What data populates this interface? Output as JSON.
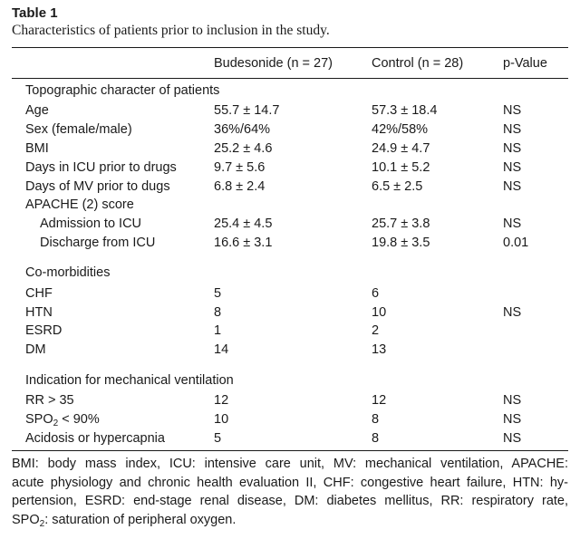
{
  "table_label": "Table 1",
  "caption": "Characteristics of patients prior to inclusion in the study.",
  "headers": {
    "col0": "",
    "col1": "Budesonide (n = 27)",
    "col2": "Control (n = 28)",
    "col3": "p-Value"
  },
  "sections": {
    "topographic": "Topographic character of patients",
    "comorbidities": "Co-morbidities",
    "indication": "Indication for mechanical ventilation"
  },
  "rows": [
    {
      "label": "Age",
      "budesonide": "55.7 ± 14.7",
      "control": "57.3 ± 18.4",
      "p": "NS"
    },
    {
      "label": "Sex (female/male)",
      "budesonide": "36%/64%",
      "control": "42%/58%",
      "p": "NS"
    },
    {
      "label": "BMI",
      "budesonide": "25.2 ± 4.6",
      "control": "24.9 ± 4.7",
      "p": "NS"
    },
    {
      "label": "Days in ICU prior to drugs",
      "budesonide": "9.7 ± 5.6",
      "control": "10.1 ± 5.2",
      "p": "NS"
    },
    {
      "label": "Days of MV prior to dugs",
      "budesonide": "6.8 ± 2.4",
      "control": "6.5 ± 2.5",
      "p": "NS"
    },
    {
      "label": "APACHE (2) score",
      "budesonide": "",
      "control": "",
      "p": ""
    },
    {
      "label": "Admission to ICU",
      "budesonide": "25.4 ± 4.5",
      "control": "25.7 ± 3.8",
      "p": "NS"
    },
    {
      "label": "Discharge from ICU",
      "budesonide": "16.6 ± 3.1",
      "control": "19.8 ± 3.5",
      "p": "0.01"
    },
    {
      "label": "CHF",
      "budesonide": "5",
      "control": "6",
      "p": ""
    },
    {
      "label": "HTN",
      "budesonide": "8",
      "control": "10",
      "p": "NS"
    },
    {
      "label": "ESRD",
      "budesonide": "1",
      "control": "2",
      "p": ""
    },
    {
      "label": "DM",
      "budesonide": "14",
      "control": "13",
      "p": ""
    },
    {
      "label": "RR > 35",
      "budesonide": "12",
      "control": "12",
      "p": "NS"
    },
    {
      "label_prefix": "SPO",
      "label_sub": "2",
      "label_suffix": " < 90%",
      "budesonide": "10",
      "control": "8",
      "p": "NS"
    },
    {
      "label": "Acidosis or hypercapnia",
      "budesonide": "5",
      "control": "8",
      "p": "NS"
    }
  ],
  "footnote": {
    "line1": "BMI: body mass index, ICU: intensive care unit, MV: mechanical ventilation, APACHE:",
    "line2": "acute physiology and chronic health evaluation II, CHF: congestive heart failure, HTN: hy-",
    "line3": "pertension, ESRD: end-stage renal disease, DM: diabetes mellitus, RR: respiratory rate,",
    "line4_prefix": "SPO",
    "line4_sub": "2",
    "line4_suffix": ": saturation of peripheral oxygen."
  }
}
